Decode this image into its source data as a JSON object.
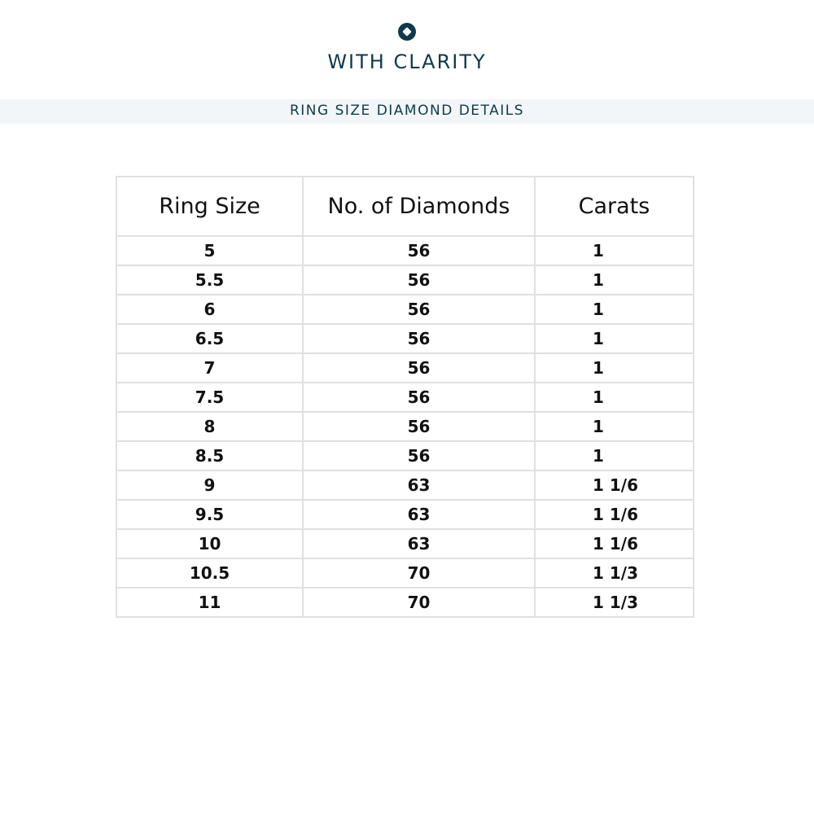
{
  "brand": {
    "name": "WITH CLARITY",
    "color": "#0f3a4a",
    "logo_icon": "diamond-in-circle-icon"
  },
  "banner": {
    "title": "RING SIZE DIAMOND DETAILS"
  },
  "table": {
    "headers": [
      "Ring Size",
      "No. of Diamonds",
      "Carats"
    ],
    "rows": [
      [
        "5",
        "56",
        "1"
      ],
      [
        "5.5",
        "56",
        "1"
      ],
      [
        "6",
        "56",
        "1"
      ],
      [
        "6.5",
        "56",
        "1"
      ],
      [
        "7",
        "56",
        "1"
      ],
      [
        "7.5",
        "56",
        "1"
      ],
      [
        "8",
        "56",
        "1"
      ],
      [
        "8.5",
        "56",
        "1"
      ],
      [
        "9",
        "63",
        "1 1/6"
      ],
      [
        "9.5",
        "63",
        "1 1/6"
      ],
      [
        "10",
        "63",
        "1 1/6"
      ],
      [
        "10.5",
        "70",
        "1 1/3"
      ],
      [
        "11",
        "70",
        "1 1/3"
      ]
    ]
  }
}
